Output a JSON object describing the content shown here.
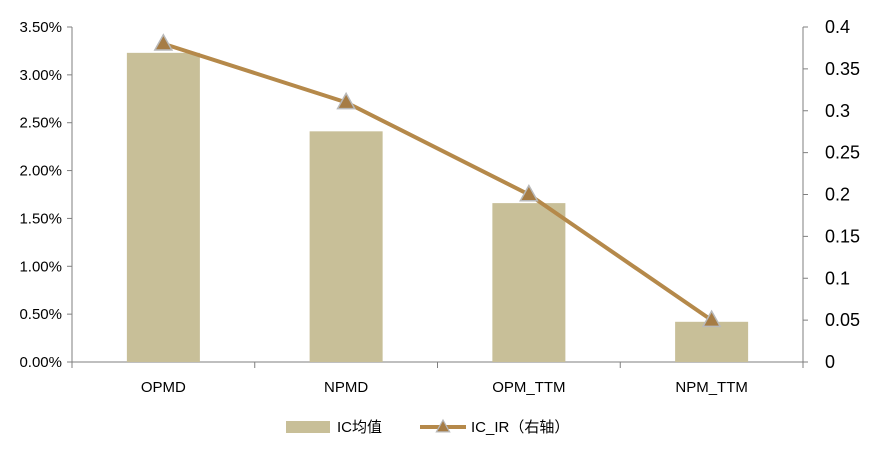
{
  "chart_data": {
    "type": "bar",
    "categories": [
      "OPMD",
      "NPMD",
      "OPM_TTM",
      "NPM_TTM"
    ],
    "series": [
      {
        "name": "IC均值",
        "type": "bar",
        "axis": "left",
        "values": [
          3.23,
          2.41,
          1.66,
          0.42
        ],
        "color": "#c8bf98"
      },
      {
        "name": "IC_IR（右轴）",
        "type": "line",
        "axis": "right",
        "values": [
          0.38,
          0.31,
          0.2,
          0.05
        ],
        "color": "#b5894a",
        "marker": "triangle",
        "marker_fill": "#a67c45",
        "marker_stroke": "#b9b9b9"
      }
    ],
    "y_left": {
      "ylim": [
        0,
        3.5
      ],
      "ticks": [
        0,
        0.5,
        1.0,
        1.5,
        2.0,
        2.5,
        3.0,
        3.5
      ],
      "tick_labels": [
        "0.00%",
        "0.50%",
        "1.00%",
        "1.50%",
        "2.00%",
        "2.50%",
        "3.00%",
        "3.50%"
      ]
    },
    "y_right": {
      "ylim": [
        0,
        0.4
      ],
      "ticks": [
        0,
        0.05,
        0.1,
        0.15,
        0.2,
        0.25,
        0.3,
        0.35,
        0.4
      ],
      "tick_labels": [
        "0",
        "0.05",
        "0.1",
        "0.15",
        "0.2",
        "0.25",
        "0.3",
        "0.35",
        "0.4"
      ]
    },
    "grid": false,
    "legend_position": "bottom-center",
    "title": "",
    "xlabel": "",
    "ylabel": ""
  }
}
